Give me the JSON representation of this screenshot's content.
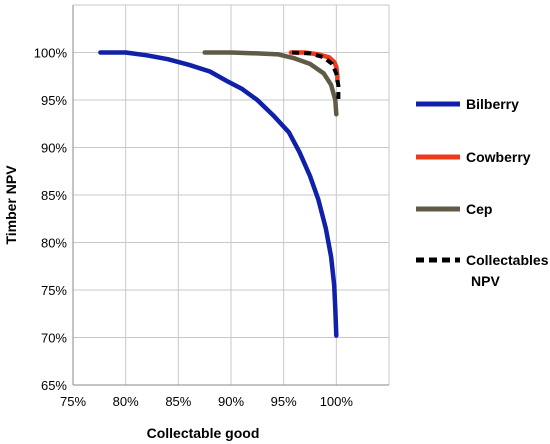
{
  "chart_data": {
    "type": "line",
    "xlabel": "Collectable good",
    "ylabel": "Timber NPV",
    "xlim": [
      75,
      105
    ],
    "ylim": [
      65,
      105
    ],
    "x_ticks": [
      75,
      80,
      85,
      90,
      95,
      100
    ],
    "x_tick_labels": [
      "75%",
      "80%",
      "85%",
      "90%",
      "95%",
      "100%"
    ],
    "y_ticks": [
      65,
      70,
      75,
      80,
      85,
      90,
      95,
      100
    ],
    "y_tick_labels": [
      "65%",
      "70%",
      "75%",
      "80%",
      "85%",
      "90%",
      "95%",
      "100%"
    ],
    "grid": true,
    "legend_position": "right",
    "series": [
      {
        "name": "Bilberry",
        "color": "#1020a8",
        "dash": "solid",
        "points": [
          [
            77.6,
            100.0
          ],
          [
            80.0,
            100.0
          ],
          [
            82.0,
            99.7
          ],
          [
            84.0,
            99.3
          ],
          [
            86.0,
            98.7
          ],
          [
            88.0,
            98.0
          ],
          [
            89.6,
            97.0
          ],
          [
            91.0,
            96.2
          ],
          [
            92.5,
            95.0
          ],
          [
            94.0,
            93.4
          ],
          [
            95.5,
            91.6
          ],
          [
            96.5,
            89.5
          ],
          [
            97.5,
            87.0
          ],
          [
            98.3,
            84.5
          ],
          [
            99.0,
            81.5
          ],
          [
            99.5,
            78.5
          ],
          [
            99.8,
            75.5
          ],
          [
            99.9,
            73.0
          ],
          [
            100.0,
            70.2
          ]
        ]
      },
      {
        "name": "Cowberry",
        "color": "#ee3a1a",
        "dash": "solid",
        "points": [
          [
            95.7,
            100.0
          ],
          [
            97.0,
            100.0
          ],
          [
            98.3,
            99.8
          ],
          [
            99.3,
            99.5
          ],
          [
            99.8,
            99.0
          ],
          [
            100.0,
            98.5
          ],
          [
            100.1,
            97.5
          ],
          [
            100.1,
            97.0
          ]
        ]
      },
      {
        "name": "Cep",
        "color": "#5f5b47",
        "dash": "solid",
        "points": [
          [
            87.5,
            100.0
          ],
          [
            90.0,
            100.0
          ],
          [
            92.5,
            99.9
          ],
          [
            94.5,
            99.8
          ],
          [
            96.0,
            99.4
          ],
          [
            97.5,
            98.8
          ],
          [
            98.8,
            97.8
          ],
          [
            99.5,
            96.6
          ],
          [
            99.9,
            95.0
          ],
          [
            100.0,
            93.5
          ]
        ]
      },
      {
        "name": "Collectables\nNPV",
        "color": "#000000",
        "dash": "dashed",
        "points": [
          [
            95.8,
            100.0
          ],
          [
            97.5,
            99.9
          ],
          [
            98.8,
            99.5
          ],
          [
            99.6,
            98.8
          ],
          [
            100.0,
            97.8
          ],
          [
            100.2,
            96.5
          ],
          [
            100.2,
            94.8
          ]
        ]
      }
    ]
  }
}
